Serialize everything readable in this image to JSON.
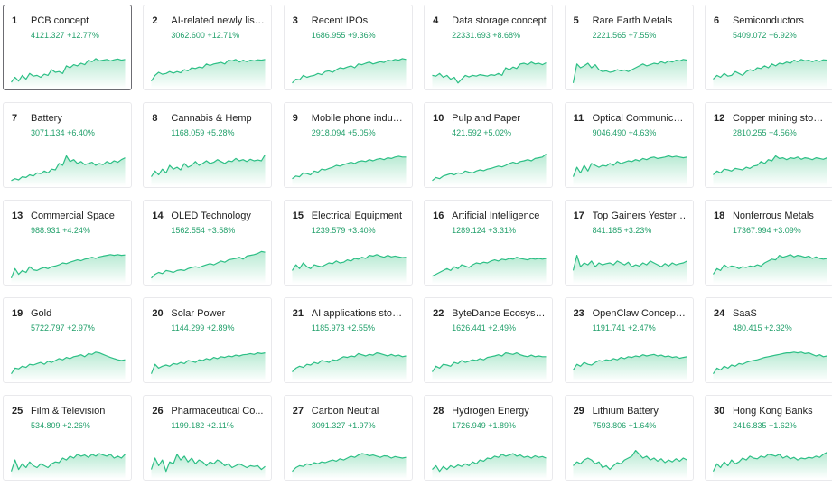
{
  "colors": {
    "line": "#2cbf85",
    "fill_top": "#b8ead3",
    "fill_bottom": "#ffffff",
    "value": "#22a06b"
  },
  "sectors": [
    {
      "rank": "1",
      "name": "PCB concept",
      "price": "4121.327",
      "change": "+12.77%",
      "selected": true,
      "series": [
        0.12,
        0.25,
        0.15,
        0.3,
        0.2,
        0.35,
        0.28,
        0.3,
        0.25,
        0.33,
        0.3,
        0.45,
        0.38,
        0.4,
        0.35,
        0.55,
        0.5,
        0.58,
        0.55,
        0.62,
        0.58,
        0.7,
        0.66,
        0.74,
        0.68,
        0.7,
        0.72,
        0.68,
        0.71,
        0.73,
        0.7,
        0.72
      ]
    },
    {
      "rank": "2",
      "name": "AI-related newly liste...",
      "price": "3062.600",
      "change": "+12.71%",
      "series": [
        0.15,
        0.3,
        0.38,
        0.33,
        0.35,
        0.4,
        0.36,
        0.4,
        0.37,
        0.45,
        0.42,
        0.5,
        0.48,
        0.52,
        0.5,
        0.6,
        0.56,
        0.6,
        0.62,
        0.64,
        0.6,
        0.7,
        0.68,
        0.72,
        0.65,
        0.7,
        0.66,
        0.7,
        0.68,
        0.71,
        0.7,
        0.72
      ]
    },
    {
      "rank": "3",
      "name": "Recent IPOs",
      "price": "1686.955",
      "change": "+9.36%",
      "series": [
        0.1,
        0.2,
        0.18,
        0.3,
        0.25,
        0.28,
        0.3,
        0.35,
        0.32,
        0.4,
        0.42,
        0.38,
        0.45,
        0.5,
        0.48,
        0.52,
        0.55,
        0.5,
        0.6,
        0.58,
        0.62,
        0.65,
        0.6,
        0.63,
        0.66,
        0.64,
        0.7,
        0.68,
        0.72,
        0.7,
        0.74,
        0.72
      ]
    },
    {
      "rank": "4",
      "name": "Data storage concept",
      "price": "22331.693",
      "change": "+8.68%",
      "series": [
        0.3,
        0.28,
        0.35,
        0.25,
        0.3,
        0.2,
        0.25,
        0.1,
        0.2,
        0.3,
        0.26,
        0.3,
        0.28,
        0.32,
        0.3,
        0.28,
        0.32,
        0.3,
        0.35,
        0.3,
        0.5,
        0.45,
        0.52,
        0.48,
        0.6,
        0.62,
        0.58,
        0.65,
        0.6,
        0.62,
        0.58,
        0.63
      ]
    },
    {
      "rank": "5",
      "name": "Rare Earth Metals",
      "price": "2221.565",
      "change": "+7.55%",
      "series": [
        0.1,
        0.6,
        0.5,
        0.55,
        0.62,
        0.5,
        0.58,
        0.45,
        0.4,
        0.42,
        0.38,
        0.4,
        0.45,
        0.42,
        0.44,
        0.4,
        0.45,
        0.5,
        0.55,
        0.6,
        0.55,
        0.58,
        0.62,
        0.6,
        0.66,
        0.62,
        0.68,
        0.65,
        0.7,
        0.68,
        0.72,
        0.7
      ]
    },
    {
      "rank": "6",
      "name": "Semiconductors",
      "price": "5409.072",
      "change": "+6.92%",
      "series": [
        0.2,
        0.3,
        0.25,
        0.35,
        0.28,
        0.3,
        0.4,
        0.35,
        0.3,
        0.4,
        0.45,
        0.42,
        0.5,
        0.48,
        0.55,
        0.5,
        0.6,
        0.55,
        0.62,
        0.6,
        0.65,
        0.62,
        0.7,
        0.66,
        0.72,
        0.68,
        0.7,
        0.66,
        0.7,
        0.67,
        0.71,
        0.7
      ]
    },
    {
      "rank": "7",
      "name": "Battery",
      "price": "3071.134",
      "change": "+6.40%",
      "series": [
        0.1,
        0.15,
        0.12,
        0.2,
        0.18,
        0.25,
        0.22,
        0.3,
        0.28,
        0.35,
        0.3,
        0.4,
        0.38,
        0.55,
        0.5,
        0.75,
        0.6,
        0.65,
        0.55,
        0.6,
        0.52,
        0.55,
        0.58,
        0.5,
        0.55,
        0.52,
        0.6,
        0.55,
        0.62,
        0.58,
        0.65,
        0.7
      ]
    },
    {
      "rank": "8",
      "name": "Cannabis & Hemp",
      "price": "1168.059",
      "change": "+5.28%",
      "series": [
        0.2,
        0.35,
        0.25,
        0.4,
        0.3,
        0.5,
        0.4,
        0.45,
        0.38,
        0.55,
        0.45,
        0.5,
        0.6,
        0.5,
        0.55,
        0.62,
        0.55,
        0.58,
        0.65,
        0.6,
        0.55,
        0.62,
        0.6,
        0.68,
        0.62,
        0.65,
        0.6,
        0.66,
        0.62,
        0.64,
        0.62,
        0.78
      ]
    },
    {
      "rank": "9",
      "name": "Mobile phone industr...",
      "price": "2918.094",
      "change": "+5.05%",
      "series": [
        0.15,
        0.22,
        0.2,
        0.3,
        0.28,
        0.25,
        0.35,
        0.32,
        0.4,
        0.38,
        0.42,
        0.45,
        0.5,
        0.48,
        0.52,
        0.55,
        0.58,
        0.55,
        0.6,
        0.62,
        0.6,
        0.65,
        0.62,
        0.66,
        0.68,
        0.65,
        0.7,
        0.68,
        0.72,
        0.74,
        0.72,
        0.72
      ]
    },
    {
      "rank": "10",
      "name": "Pulp and Paper",
      "price": "421.592",
      "change": "+5.02%",
      "series": [
        0.1,
        0.18,
        0.15,
        0.22,
        0.25,
        0.28,
        0.25,
        0.3,
        0.28,
        0.35,
        0.32,
        0.3,
        0.35,
        0.38,
        0.36,
        0.4,
        0.42,
        0.45,
        0.48,
        0.46,
        0.5,
        0.55,
        0.58,
        0.55,
        0.6,
        0.62,
        0.65,
        0.62,
        0.68,
        0.7,
        0.72,
        0.8
      ]
    },
    {
      "rank": "11",
      "name": "Optical Communicatio...",
      "price": "9046.490",
      "change": "+4.63%",
      "series": [
        0.2,
        0.45,
        0.3,
        0.5,
        0.35,
        0.55,
        0.5,
        0.45,
        0.5,
        0.48,
        0.55,
        0.5,
        0.6,
        0.55,
        0.58,
        0.62,
        0.6,
        0.65,
        0.62,
        0.68,
        0.65,
        0.7,
        0.72,
        0.68,
        0.7,
        0.72,
        0.75,
        0.72,
        0.74,
        0.72,
        0.7,
        0.72
      ]
    },
    {
      "rank": "12",
      "name": "Copper mining stocks",
      "price": "2810.255",
      "change": "+4.56%",
      "series": [
        0.25,
        0.35,
        0.3,
        0.4,
        0.38,
        0.35,
        0.42,
        0.4,
        0.38,
        0.45,
        0.42,
        0.48,
        0.5,
        0.6,
        0.55,
        0.65,
        0.62,
        0.75,
        0.68,
        0.7,
        0.65,
        0.7,
        0.68,
        0.72,
        0.66,
        0.7,
        0.68,
        0.65,
        0.7,
        0.68,
        0.66,
        0.7
      ]
    },
    {
      "rank": "13",
      "name": "Commercial Space",
      "price": "988.931",
      "change": "+4.24%",
      "series": [
        0.1,
        0.35,
        0.2,
        0.3,
        0.25,
        0.4,
        0.32,
        0.3,
        0.35,
        0.38,
        0.35,
        0.4,
        0.42,
        0.45,
        0.5,
        0.48,
        0.52,
        0.55,
        0.58,
        0.56,
        0.6,
        0.62,
        0.65,
        0.62,
        0.66,
        0.68,
        0.7,
        0.72,
        0.7,
        0.72,
        0.7,
        0.71
      ]
    },
    {
      "rank": "14",
      "name": "OLED Technology",
      "price": "1562.554",
      "change": "+3.58%",
      "series": [
        0.1,
        0.2,
        0.25,
        0.22,
        0.3,
        0.28,
        0.25,
        0.3,
        0.32,
        0.3,
        0.35,
        0.38,
        0.4,
        0.38,
        0.42,
        0.45,
        0.48,
        0.45,
        0.5,
        0.55,
        0.52,
        0.58,
        0.6,
        0.62,
        0.65,
        0.6,
        0.68,
        0.7,
        0.72,
        0.75,
        0.8,
        0.78
      ]
    },
    {
      "rank": "15",
      "name": "Electrical Equipment",
      "price": "1239.579",
      "change": "+3.40%",
      "series": [
        0.3,
        0.45,
        0.35,
        0.5,
        0.4,
        0.35,
        0.45,
        0.42,
        0.4,
        0.45,
        0.5,
        0.48,
        0.55,
        0.5,
        0.52,
        0.58,
        0.55,
        0.62,
        0.6,
        0.65,
        0.62,
        0.7,
        0.68,
        0.72,
        0.68,
        0.65,
        0.7,
        0.66,
        0.68,
        0.66,
        0.64,
        0.65
      ]
    },
    {
      "rank": "16",
      "name": "Artificial Intelligence",
      "price": "1289.124",
      "change": "+3.31%",
      "series": [
        0.15,
        0.2,
        0.25,
        0.3,
        0.35,
        0.3,
        0.4,
        0.35,
        0.45,
        0.42,
        0.38,
        0.45,
        0.5,
        0.48,
        0.52,
        0.5,
        0.55,
        0.58,
        0.55,
        0.6,
        0.58,
        0.62,
        0.6,
        0.65,
        0.62,
        0.6,
        0.58,
        0.62,
        0.6,
        0.62,
        0.6,
        0.62
      ]
    },
    {
      "rank": "17",
      "name": "Top Gainers Yesterda...",
      "price": "841.185",
      "change": "+3.23%",
      "series": [
        0.3,
        0.7,
        0.4,
        0.5,
        0.45,
        0.55,
        0.4,
        0.5,
        0.45,
        0.48,
        0.5,
        0.45,
        0.55,
        0.5,
        0.45,
        0.52,
        0.4,
        0.45,
        0.42,
        0.5,
        0.45,
        0.55,
        0.5,
        0.45,
        0.4,
        0.48,
        0.42,
        0.5,
        0.45,
        0.48,
        0.5,
        0.55
      ]
    },
    {
      "rank": "18",
      "name": "Nonferrous Metals",
      "price": "17367.994",
      "change": "+3.09%",
      "series": [
        0.2,
        0.35,
        0.3,
        0.45,
        0.38,
        0.42,
        0.4,
        0.35,
        0.4,
        0.38,
        0.42,
        0.4,
        0.45,
        0.42,
        0.5,
        0.55,
        0.6,
        0.58,
        0.7,
        0.65,
        0.68,
        0.72,
        0.66,
        0.7,
        0.68,
        0.65,
        0.68,
        0.62,
        0.66,
        0.62,
        0.6,
        0.62
      ]
    },
    {
      "rank": "19",
      "name": "Gold",
      "price": "5722.797",
      "change": "+2.97%",
      "series": [
        0.15,
        0.3,
        0.28,
        0.35,
        0.32,
        0.4,
        0.38,
        0.42,
        0.45,
        0.4,
        0.48,
        0.45,
        0.5,
        0.55,
        0.52,
        0.58,
        0.55,
        0.6,
        0.62,
        0.65,
        0.6,
        0.68,
        0.66,
        0.72,
        0.7,
        0.66,
        0.62,
        0.58,
        0.55,
        0.52,
        0.5,
        0.52
      ]
    },
    {
      "rank": "20",
      "name": "Solar Power",
      "price": "1144.299",
      "change": "+2.89%",
      "series": [
        0.15,
        0.4,
        0.3,
        0.35,
        0.38,
        0.35,
        0.42,
        0.4,
        0.45,
        0.42,
        0.5,
        0.48,
        0.45,
        0.52,
        0.5,
        0.55,
        0.52,
        0.58,
        0.55,
        0.6,
        0.58,
        0.62,
        0.6,
        0.64,
        0.62,
        0.65,
        0.66,
        0.68,
        0.66,
        0.7,
        0.68,
        0.7
      ]
    },
    {
      "rank": "21",
      "name": "AI applications stocks",
      "price": "1185.973",
      "change": "+2.55%",
      "series": [
        0.2,
        0.3,
        0.35,
        0.32,
        0.4,
        0.38,
        0.45,
        0.42,
        0.5,
        0.48,
        0.45,
        0.52,
        0.5,
        0.55,
        0.6,
        0.58,
        0.62,
        0.6,
        0.68,
        0.65,
        0.62,
        0.66,
        0.64,
        0.7,
        0.68,
        0.65,
        0.62,
        0.66,
        0.62,
        0.64,
        0.6,
        0.62
      ]
    },
    {
      "rank": "22",
      "name": "ByteDance Ecosystem",
      "price": "1626.441",
      "change": "+2.49%",
      "series": [
        0.2,
        0.35,
        0.3,
        0.4,
        0.38,
        0.35,
        0.45,
        0.42,
        0.5,
        0.45,
        0.48,
        0.52,
        0.5,
        0.55,
        0.52,
        0.58,
        0.6,
        0.62,
        0.65,
        0.62,
        0.7,
        0.68,
        0.66,
        0.7,
        0.65,
        0.62,
        0.6,
        0.64,
        0.6,
        0.62,
        0.6,
        0.6
      ]
    },
    {
      "rank": "23",
      "name": "OpenClaw Concept S...",
      "price": "1191.741",
      "change": "+2.47%",
      "series": [
        0.25,
        0.4,
        0.35,
        0.45,
        0.4,
        0.38,
        0.45,
        0.5,
        0.48,
        0.52,
        0.5,
        0.55,
        0.52,
        0.58,
        0.55,
        0.6,
        0.58,
        0.62,
        0.6,
        0.65,
        0.62,
        0.64,
        0.66,
        0.62,
        0.64,
        0.6,
        0.62,
        0.58,
        0.6,
        0.56,
        0.58,
        0.6
      ]
    },
    {
      "rank": "24",
      "name": "SaaS",
      "price": "480.415",
      "change": "+2.32%",
      "series": [
        0.15,
        0.3,
        0.25,
        0.35,
        0.3,
        0.38,
        0.35,
        0.42,
        0.4,
        0.45,
        0.48,
        0.5,
        0.52,
        0.55,
        0.58,
        0.6,
        0.62,
        0.64,
        0.66,
        0.68,
        0.7,
        0.7,
        0.72,
        0.7,
        0.72,
        0.68,
        0.7,
        0.66,
        0.62,
        0.65,
        0.6,
        0.62
      ]
    },
    {
      "rank": "25",
      "name": "Film & Television",
      "price": "534.809",
      "change": "+2.26%",
      "series": [
        0.15,
        0.45,
        0.2,
        0.35,
        0.25,
        0.4,
        0.3,
        0.25,
        0.35,
        0.3,
        0.25,
        0.35,
        0.4,
        0.38,
        0.5,
        0.45,
        0.55,
        0.5,
        0.6,
        0.55,
        0.58,
        0.52,
        0.6,
        0.55,
        0.62,
        0.58,
        0.55,
        0.6,
        0.5,
        0.55,
        0.5,
        0.6
      ]
    },
    {
      "rank": "26",
      "name": "Pharmaceutical Co...",
      "price": "1199.182",
      "change": "+2.11%",
      "series": [
        0.2,
        0.5,
        0.3,
        0.45,
        0.15,
        0.4,
        0.35,
        0.6,
        0.45,
        0.55,
        0.4,
        0.5,
        0.35,
        0.45,
        0.4,
        0.3,
        0.4,
        0.35,
        0.45,
        0.4,
        0.3,
        0.35,
        0.25,
        0.3,
        0.35,
        0.3,
        0.25,
        0.3,
        0.28,
        0.3,
        0.2,
        0.28
      ]
    },
    {
      "rank": "27",
      "name": "Carbon Neutral",
      "price": "3091.327",
      "change": "+1.97%",
      "series": [
        0.15,
        0.25,
        0.3,
        0.28,
        0.35,
        0.32,
        0.38,
        0.35,
        0.4,
        0.38,
        0.42,
        0.45,
        0.42,
        0.48,
        0.45,
        0.5,
        0.55,
        0.52,
        0.58,
        0.62,
        0.6,
        0.56,
        0.58,
        0.55,
        0.52,
        0.56,
        0.55,
        0.5,
        0.54,
        0.52,
        0.5,
        0.52
      ]
    },
    {
      "rank": "28",
      "name": "Hydrogen Energy",
      "price": "1726.949",
      "change": "+1.89%",
      "series": [
        0.2,
        0.3,
        0.15,
        0.28,
        0.2,
        0.3,
        0.25,
        0.32,
        0.28,
        0.35,
        0.3,
        0.4,
        0.35,
        0.45,
        0.42,
        0.5,
        0.48,
        0.55,
        0.52,
        0.6,
        0.55,
        0.58,
        0.62,
        0.55,
        0.58,
        0.52,
        0.55,
        0.5,
        0.56,
        0.52,
        0.54,
        0.5
      ]
    },
    {
      "rank": "29",
      "name": "Lithium Battery",
      "price": "7593.806",
      "change": "+1.64%",
      "series": [
        0.3,
        0.4,
        0.35,
        0.45,
        0.5,
        0.45,
        0.35,
        0.4,
        0.25,
        0.3,
        0.2,
        0.3,
        0.38,
        0.35,
        0.45,
        0.5,
        0.55,
        0.7,
        0.6,
        0.5,
        0.55,
        0.45,
        0.5,
        0.42,
        0.48,
        0.38,
        0.45,
        0.4,
        0.48,
        0.42,
        0.5,
        0.45
      ]
    },
    {
      "rank": "30",
      "name": "Hong Kong Banks",
      "price": "2416.835",
      "change": "+1.62%",
      "series": [
        0.15,
        0.35,
        0.25,
        0.4,
        0.3,
        0.45,
        0.35,
        0.4,
        0.5,
        0.45,
        0.55,
        0.5,
        0.48,
        0.55,
        0.52,
        0.6,
        0.58,
        0.55,
        0.6,
        0.5,
        0.55,
        0.48,
        0.52,
        0.45,
        0.5,
        0.48,
        0.52,
        0.5,
        0.55,
        0.52,
        0.6,
        0.65
      ]
    }
  ]
}
